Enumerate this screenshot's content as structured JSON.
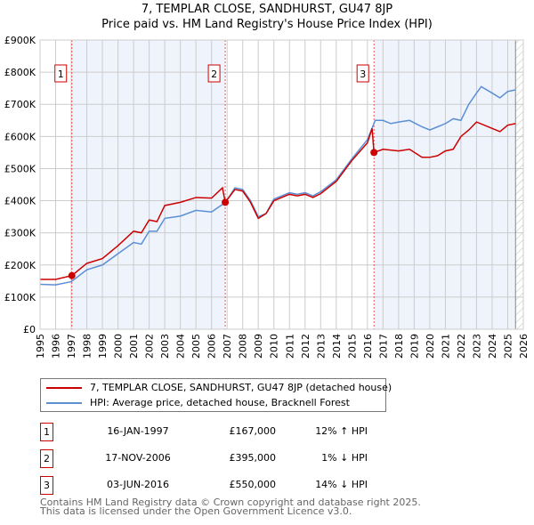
{
  "chart_data": {
    "type": "line",
    "title": "7, TEMPLAR CLOSE, SANDHURST, GU47 8JP",
    "subtitle": "Price paid vs. HM Land Registry's House Price Index (HPI)",
    "xlim": [
      1995,
      2026
    ],
    "ylim": [
      0,
      900000
    ],
    "x_ticks": [
      "1995",
      "1996",
      "1997",
      "1998",
      "1999",
      "2000",
      "2001",
      "2002",
      "2003",
      "2004",
      "2005",
      "2006",
      "2007",
      "2008",
      "2009",
      "2010",
      "2011",
      "2012",
      "2013",
      "2014",
      "2015",
      "2016",
      "2017",
      "2018",
      "2019",
      "2020",
      "2021",
      "2022",
      "2023",
      "2024",
      "2025",
      "2026"
    ],
    "y_ticks": [
      "£0",
      "£100K",
      "£200K",
      "£300K",
      "£400K",
      "£500K",
      "£600K",
      "£700K",
      "£800K",
      "£900K"
    ],
    "grid": true,
    "series": [
      {
        "name": "7, TEMPLAR CLOSE, SANDHURST, GU47 8JP (detached house)",
        "color": "#cc0000",
        "x": [
          1995,
          1996,
          1997.04,
          1998,
          1999,
          2000,
          2001,
          2001.5,
          2002,
          2002.5,
          2003,
          2004,
          2005,
          2006,
          2006.7,
          2006.88,
          2007.5,
          2008,
          2008.5,
          2009,
          2009.5,
          2010,
          2011,
          2011.5,
          2012,
          2012.5,
          2013,
          2014,
          2015,
          2016,
          2016.3,
          2016.42,
          2017,
          2018,
          2018.7,
          2019.5,
          2020,
          2020.5,
          2021,
          2021.5,
          2022,
          2022.5,
          2023,
          2024,
          2024.5,
          2025,
          2025.5
        ],
        "y": [
          155000,
          155000,
          167000,
          205000,
          220000,
          260000,
          305000,
          300000,
          340000,
          335000,
          385000,
          395000,
          410000,
          408000,
          440000,
          395000,
          435000,
          430000,
          395000,
          345000,
          360000,
          400000,
          420000,
          415000,
          420000,
          410000,
          422000,
          460000,
          525000,
          580000,
          625000,
          550000,
          560000,
          555000,
          560000,
          535000,
          535000,
          540000,
          555000,
          560000,
          600000,
          620000,
          645000,
          625000,
          615000,
          635000,
          640000
        ]
      },
      {
        "name": "HPI: Average price, detached house, Bracknell Forest",
        "color": "#5b8fd4",
        "x": [
          1995,
          1996,
          1997,
          1998,
          1999,
          2000,
          2001,
          2001.5,
          2002,
          2002.5,
          2003,
          2004,
          2005,
          2006,
          2006.9,
          2007.5,
          2008,
          2008.5,
          2009,
          2009.5,
          2010,
          2011,
          2011.5,
          2012,
          2012.5,
          2013,
          2014,
          2015,
          2016,
          2016.5,
          2017,
          2017.5,
          2018,
          2018.7,
          2019.5,
          2020,
          2020.5,
          2021,
          2021.5,
          2022,
          2022.5,
          2023,
          2023.3,
          2024,
          2024.5,
          2025,
          2025.5
        ],
        "y": [
          140000,
          138000,
          148000,
          185000,
          200000,
          235000,
          270000,
          265000,
          305000,
          305000,
          345000,
          352000,
          370000,
          365000,
          395000,
          440000,
          435000,
          400000,
          350000,
          360000,
          405000,
          425000,
          420000,
          425000,
          415000,
          428000,
          465000,
          530000,
          590000,
          650000,
          650000,
          640000,
          645000,
          650000,
          630000,
          620000,
          630000,
          640000,
          655000,
          650000,
          700000,
          735000,
          755000,
          735000,
          720000,
          740000,
          745000
        ]
      }
    ],
    "sales": [
      {
        "label": "1",
        "x": 1997.04,
        "y": 167000,
        "date": "16-JAN-1997",
        "price": "£167,000",
        "hpi": "12% ↑ HPI"
      },
      {
        "label": "2",
        "x": 2006.88,
        "y": 395000,
        "date": "17-NOV-2006",
        "price": "£395,000",
        "hpi": "1% ↓ HPI"
      },
      {
        "label": "3",
        "x": 2016.42,
        "y": 550000,
        "date": "03-JUN-2016",
        "price": "£550,000",
        "hpi": "14% ↓ HPI"
      }
    ],
    "shaded_ranges": [
      [
        1997.04,
        2006.88
      ],
      [
        2016.42,
        2025.5
      ]
    ],
    "hatched_from": 2025.5,
    "legend_placement": "below"
  },
  "footer": {
    "line1": "Contains HM Land Registry data © Crown copyright and database right 2025.",
    "line2": "This data is licensed under the Open Government Licence v3.0."
  }
}
